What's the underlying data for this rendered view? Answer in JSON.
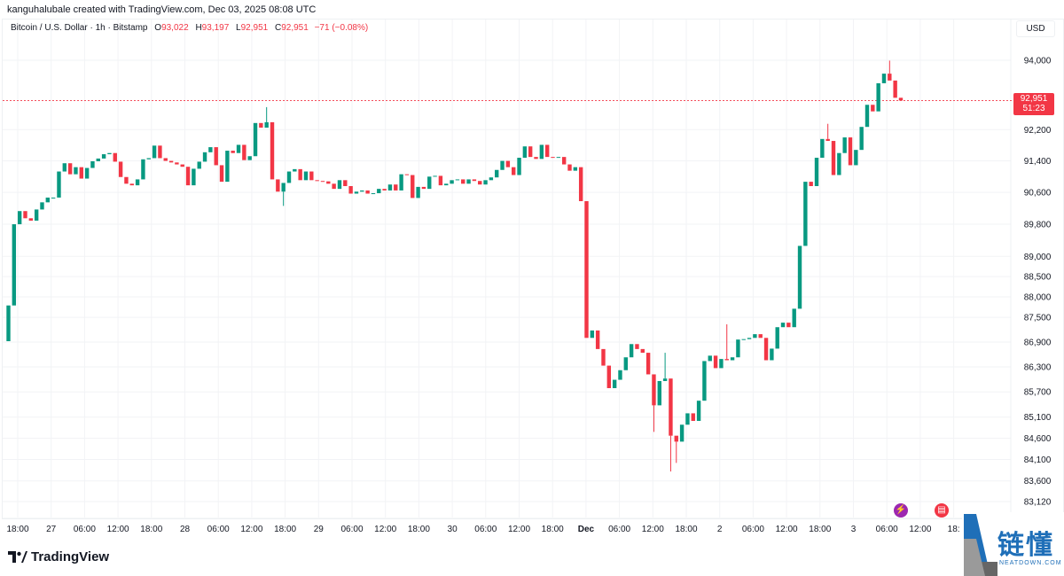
{
  "credit": "kanguhalubale created with TradingView.com, Dec 03, 2025 08:08 UTC",
  "legend": {
    "symbol": "Bitcoin / U.S. Dollar · 1h · Bitstamp",
    "o_label": "O",
    "o": "93,022",
    "h_label": "H",
    "h": "93,197",
    "l_label": "L",
    "l": "92,951",
    "c_label": "C",
    "c": "92,951",
    "change": "−71 (−0.08%)"
  },
  "currency": "USD",
  "last_price": {
    "price": "92,951",
    "countdown": "51:23",
    "value": 92951
  },
  "colors": {
    "up": "#089981",
    "down": "#f23645",
    "grid": "#f2f3f6"
  },
  "icons": {
    "event1": "lightning-event-icon",
    "event2": "us-flag-event-icon"
  },
  "branding": {
    "tradingview": "TradingView",
    "watermark_cn": "链懂",
    "watermark_en": "NEATDOWN.COM"
  },
  "chart_data": {
    "type": "candlestick",
    "interval": "1h",
    "scale": "log",
    "ylim": [
      83120,
      94000
    ],
    "grid": true,
    "y_ticks": [
      "94,000",
      "92,200",
      "91,400",
      "90,600",
      "89,800",
      "89,000",
      "88,500",
      "88,000",
      "87,500",
      "86,900",
      "86,300",
      "85,700",
      "85,100",
      "84,600",
      "84,100",
      "83,600",
      "83,120"
    ],
    "y_tick_values": [
      94000,
      92200,
      91400,
      90600,
      89800,
      89000,
      88500,
      88000,
      87500,
      86900,
      86300,
      85700,
      85100,
      84600,
      84100,
      83600,
      83120
    ],
    "x_ticks": [
      "18:00",
      "27",
      "06:00",
      "12:00",
      "18:00",
      "28",
      "06:00",
      "12:00",
      "18:00",
      "29",
      "06:00",
      "12:00",
      "18:00",
      "30",
      "06:00",
      "12:00",
      "18:00",
      "Dec",
      "06:00",
      "12:00",
      "18:00",
      "2",
      "06:00",
      "12:00",
      "18:00",
      "3",
      "06:00",
      "12:00",
      "18:"
    ],
    "first_open": 86920,
    "closes": [
      87790,
      89800,
      90130,
      89950,
      89890,
      90170,
      90350,
      90470,
      90470,
      91130,
      91340,
      91060,
      91240,
      90950,
      91220,
      91390,
      91460,
      91570,
      91600,
      91380,
      90990,
      90820,
      90780,
      90930,
      91440,
      91470,
      91790,
      91470,
      91400,
      91360,
      91310,
      91250,
      90780,
      91200,
      91380,
      91620,
      91750,
      91290,
      90870,
      91660,
      91600,
      91810,
      91420,
      91520,
      92370,
      92250,
      92390,
      90930,
      90620,
      90840,
      91130,
      91190,
      90910,
      91130,
      90910,
      90890,
      90880,
      90820,
      90690,
      90910,
      90760,
      90570,
      90620,
      90650,
      90570,
      90580,
      90690,
      90650,
      90800,
      90650,
      91060,
      91040,
      90460,
      90740,
      90690,
      91000,
      91020,
      90780,
      90820,
      90910,
      90930,
      90820,
      90930,
      90890,
      90800,
      90910,
      90980,
      91170,
      91400,
      91240,
      91040,
      91480,
      91770,
      91500,
      91450,
      91810,
      91500,
      91480,
      91500,
      91310,
      91150,
      91240,
      90380,
      87000,
      87180,
      86730,
      86330,
      85790,
      85990,
      86220,
      86530,
      86850,
      86730,
      86640,
      86120,
      85380,
      85960,
      86020,
      84660,
      84520,
      84920,
      85190,
      85010,
      85490,
      86440,
      86570,
      86270,
      86490,
      86460,
      86530,
      86960,
      86970,
      87000,
      87090,
      87000,
      86460,
      86740,
      87260,
      87370,
      87260,
      87710,
      89260,
      90870,
      90760,
      91480,
      91960,
      91910,
      91040,
      91600,
      92000,
      91290,
      91680,
      92270,
      92840,
      92670,
      93400,
      93650,
      93470,
      93022,
      92951
    ],
    "notable_highs": {
      "46": 92780,
      "117": 86640,
      "128": 87330,
      "146": 92350,
      "157": 93990
    },
    "notable_lows": {
      "49": 90260,
      "115": 84750,
      "118": 83820,
      "119": 84020
    }
  }
}
